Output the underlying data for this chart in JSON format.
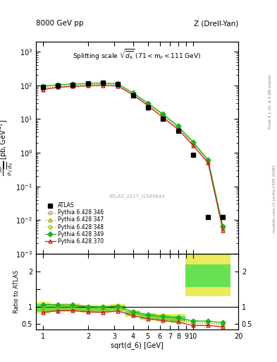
{
  "title_left": "8000 GeV pp",
  "title_right": "Z (Drell-Yan)",
  "plot_title": "Splitting scale $\\sqrt{\\overline{d_6}}$ (71 < m$_{ll}$ < 111 GeV)",
  "xlabel": "sqrt(d_6) [GeV]",
  "ylabel_main": "d$\\sigma$/dsqrt($\\overline{d_6}$) [pb,GeV$^{-1}$]",
  "ylabel_ratio": "Ratio to ATLAS",
  "watermark": "ATLAS_2017_I1589844",
  "atlas_x": [
    1.0,
    1.26,
    1.58,
    2.0,
    2.51,
    3.16,
    3.98,
    5.01,
    6.31,
    7.94,
    10.0,
    12.6,
    15.8
  ],
  "atlas_y": [
    90,
    100,
    105,
    115,
    120,
    110,
    50,
    22,
    10,
    4.5,
    0.85,
    0.012,
    0.012
  ],
  "py346_x": [
    1.0,
    1.26,
    1.58,
    2.0,
    2.51,
    3.16,
    3.98,
    5.01,
    6.31,
    7.94,
    10.0,
    12.6,
    15.8
  ],
  "py346_y": [
    78,
    90,
    95,
    100,
    105,
    100,
    55,
    27,
    12,
    5.5,
    1.8,
    0.55,
    0.0055
  ],
  "py347_x": [
    1.0,
    1.26,
    1.58,
    2.0,
    2.51,
    3.16,
    3.98,
    5.01,
    6.31,
    7.94,
    10.0,
    12.6,
    15.8
  ],
  "py347_y": [
    85,
    95,
    100,
    105,
    110,
    105,
    57,
    28,
    13,
    5.8,
    1.9,
    0.58,
    0.0058
  ],
  "py348_x": [
    1.0,
    1.26,
    1.58,
    2.0,
    2.51,
    3.16,
    3.98,
    5.01,
    6.31,
    7.94,
    10.0,
    12.6,
    15.8
  ],
  "py348_y": [
    88,
    98,
    103,
    108,
    113,
    108,
    58,
    29,
    13.5,
    6.0,
    2.0,
    0.6,
    0.006
  ],
  "py349_x": [
    1.0,
    1.26,
    1.58,
    2.0,
    2.51,
    3.16,
    3.98,
    5.01,
    6.31,
    7.94,
    10.0,
    12.6,
    15.8
  ],
  "py349_y": [
    95,
    105,
    110,
    115,
    118,
    112,
    60,
    30,
    14,
    6.2,
    2.1,
    0.62,
    0.0065
  ],
  "py370_x": [
    1.0,
    1.26,
    1.58,
    2.0,
    2.51,
    3.16,
    3.98,
    5.01,
    6.31,
    7.94,
    10.0,
    12.6,
    15.8
  ],
  "py370_y": [
    75,
    88,
    93,
    97,
    100,
    96,
    52,
    25,
    11,
    5.0,
    1.65,
    0.5,
    0.005
  ],
  "ratio_346": [
    0.87,
    0.9,
    0.905,
    0.87,
    0.875,
    0.91,
    0.78,
    0.7,
    0.65,
    0.62,
    0.5,
    0.5,
    0.46
  ],
  "ratio_347": [
    0.95,
    0.95,
    0.95,
    0.91,
    0.917,
    0.955,
    0.8,
    0.73,
    0.68,
    0.65,
    0.53,
    0.53,
    0.48
  ],
  "ratio_348": [
    0.98,
    0.98,
    0.98,
    0.94,
    0.942,
    0.982,
    0.82,
    0.74,
    0.69,
    0.66,
    0.56,
    0.56,
    0.5
  ],
  "ratio_349": [
    1.06,
    1.05,
    1.048,
    1.0,
    0.983,
    1.018,
    0.85,
    0.77,
    0.72,
    0.68,
    0.59,
    0.59,
    0.54
  ],
  "ratio_370": [
    0.83,
    0.88,
    0.886,
    0.845,
    0.833,
    0.873,
    0.74,
    0.65,
    0.6,
    0.56,
    0.46,
    0.46,
    0.42
  ],
  "band_x_edges": [
    0.891,
    1.122,
    1.413,
    1.778,
    2.239,
    2.818,
    3.548,
    4.467,
    5.623,
    7.079,
    8.913,
    11.22,
    14.13,
    17.78
  ],
  "yellow_lo": [
    0.8,
    0.85,
    0.86,
    0.83,
    0.83,
    0.86,
    0.71,
    0.61,
    0.57,
    0.53,
    1.3,
    1.3,
    1.3
  ],
  "yellow_hi": [
    1.13,
    1.1,
    1.09,
    1.05,
    1.05,
    1.08,
    0.9,
    0.82,
    0.78,
    0.78,
    2.6,
    2.6,
    2.6
  ],
  "green_lo": [
    0.85,
    0.88,
    0.89,
    0.86,
    0.86,
    0.89,
    0.74,
    0.64,
    0.6,
    0.58,
    1.55,
    1.55,
    1.55
  ],
  "green_hi": [
    1.08,
    1.05,
    1.04,
    1.01,
    1.01,
    1.04,
    0.87,
    0.79,
    0.75,
    0.73,
    2.2,
    2.2,
    2.2
  ],
  "color_346": "#c8a050",
  "color_347": "#a8a800",
  "color_348": "#80d000",
  "color_349": "#20b020",
  "color_370": "#c02020",
  "xlim": [
    0.9,
    20.0
  ],
  "ylim_main": [
    0.001,
    2000
  ],
  "ylim_ratio": [
    0.35,
    2.5
  ]
}
